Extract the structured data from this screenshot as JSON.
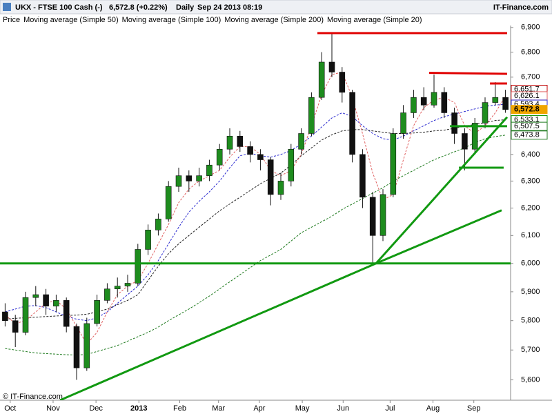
{
  "chart_data": {
    "type": "candlestick",
    "title": "UKX - FTSE 100 Cash (-)",
    "subtitle": "6,572.8 (+0.22%)",
    "period": "Daily",
    "timestamp": "Sep 24 2013 08:19",
    "source": "IT-Finance.com",
    "copyright": "© IT-Finance.com",
    "log_scale": true,
    "grid": false,
    "xlim": [
      0,
      250
    ],
    "xticks": [
      {
        "value": 5,
        "label": "Oct"
      },
      {
        "value": 26,
        "label": "Nov"
      },
      {
        "value": 47,
        "label": "Dec"
      },
      {
        "value": 68,
        "label": "2013"
      },
      {
        "value": 88,
        "label": "Feb"
      },
      {
        "value": 107,
        "label": "Mar"
      },
      {
        "value": 127,
        "label": "Apr"
      },
      {
        "value": 148,
        "label": "May"
      },
      {
        "value": 168,
        "label": "Jun"
      },
      {
        "value": 191,
        "label": "Jul"
      },
      {
        "value": 212,
        "label": "Aug"
      },
      {
        "value": 232,
        "label": "Sep"
      }
    ],
    "ylim": [
      5533,
      6908
    ],
    "yticks": [
      {
        "value": 5600,
        "label": "5,600"
      },
      {
        "value": 5700,
        "label": "5,700"
      },
      {
        "value": 5800,
        "label": "5,800"
      },
      {
        "value": 5900,
        "label": "5,900"
      },
      {
        "value": 6000,
        "label": "6,000"
      },
      {
        "value": 6100,
        "label": "6,100"
      },
      {
        "value": 6200,
        "label": "6,200"
      },
      {
        "value": 6300,
        "label": "6,300"
      },
      {
        "value": 6400,
        "label": "6,400"
      },
      {
        "value": 6500,
        "label": "6,500"
      },
      {
        "value": 6600,
        "label": "6,600"
      },
      {
        "value": 6700,
        "label": "6,700"
      },
      {
        "value": 6800,
        "label": "6,800"
      },
      {
        "value": 6900,
        "label": "6,900"
      }
    ],
    "x": [
      2.5,
      7.5,
      12.5,
      17.5,
      22.5,
      27.5,
      32.5,
      37.5,
      42.5,
      47.5,
      52.5,
      57.5,
      62.5,
      67.5,
      72.5,
      77.5,
      82.5,
      87.5,
      92.5,
      97.5,
      102.5,
      107.5,
      112.5,
      117.5,
      122.5,
      127.5,
      132.5,
      137.5,
      142.5,
      147.5,
      152.5,
      157.5,
      162.5,
      167.5,
      172.5,
      177.5,
      182.5,
      187.5,
      192.5,
      197.5,
      202.5,
      207.5,
      212.5,
      217.5,
      222.5,
      227.5,
      232.5,
      237.5,
      242.5,
      247.5
    ],
    "price": {
      "name": "Price",
      "up_color": "#1e8c1e",
      "down_color": "#111111",
      "open": [
        5830,
        5800,
        5760,
        5880,
        5890,
        5850,
        5870,
        5780,
        5640,
        5790,
        5870,
        5910,
        5920,
        5930,
        6050,
        6120,
        6160,
        6280,
        6320,
        6300,
        6320,
        6360,
        6420,
        6470,
        6430,
        6400,
        6380,
        6250,
        6300,
        6420,
        6480,
        6620,
        6760,
        6720,
        6640,
        6400,
        6240,
        6100,
        6250,
        6480,
        6560,
        6620,
        6590,
        6640,
        6560,
        6480,
        6420,
        6520,
        6600,
        6620
      ],
      "high": [
        5860,
        5820,
        5900,
        5920,
        5910,
        5890,
        5880,
        5790,
        5810,
        5890,
        5930,
        5950,
        5960,
        6070,
        6140,
        6180,
        6300,
        6350,
        6340,
        6350,
        6380,
        6440,
        6500,
        6490,
        6450,
        6420,
        6390,
        6330,
        6440,
        6500,
        6640,
        6800,
        6875,
        6740,
        6650,
        6420,
        6260,
        6270,
        6500,
        6590,
        6650,
        6660,
        6710,
        6660,
        6580,
        6500,
        6540,
        6620,
        6680,
        6650
      ],
      "low": [
        5780,
        5710,
        5750,
        5850,
        5820,
        5830,
        5760,
        5600,
        5630,
        5780,
        5860,
        5880,
        5900,
        5920,
        6030,
        6100,
        6150,
        6260,
        6260,
        6280,
        6300,
        6340,
        6400,
        6410,
        6370,
        6340,
        6210,
        6230,
        6280,
        6400,
        6470,
        6610,
        6700,
        6600,
        6370,
        6200,
        6000,
        6080,
        6240,
        6460,
        6540,
        6570,
        6580,
        6540,
        6440,
        6340,
        6400,
        6500,
        6590,
        6560
      ],
      "close": [
        5800,
        5760,
        5880,
        5890,
        5850,
        5870,
        5780,
        5640,
        5790,
        5870,
        5910,
        5920,
        5930,
        6050,
        6120,
        6160,
        6280,
        6320,
        6300,
        6320,
        6360,
        6420,
        6470,
        6430,
        6400,
        6380,
        6250,
        6300,
        6420,
        6480,
        6620,
        6760,
        6720,
        6640,
        6400,
        6240,
        6100,
        6250,
        6480,
        6560,
        6620,
        6590,
        6640,
        6560,
        6480,
        6420,
        6520,
        6600,
        6620,
        6572.8
      ]
    },
    "series": [
      {
        "name": "Moving average (Simple 50)",
        "color": "#2b2bd0",
        "values": [
          5830,
          5840,
          5850,
          5852,
          5845,
          5830,
          5815,
          5805,
          5800,
          5810,
          5830,
          5860,
          5890,
          5920,
          5960,
          6010,
          6070,
          6130,
          6185,
          6225,
          6260,
          6300,
          6350,
          6395,
          6405,
          6395,
          6390,
          6400,
          6415,
          6440,
          6470,
          6505,
          6540,
          6560,
          6545,
          6510,
          6480,
          6460,
          6455,
          6470,
          6490,
          6510,
          6530,
          6545,
          6555,
          6565,
          6575,
          6585,
          6590,
          6593.4
        ]
      },
      {
        "name": "Moving average (Simple 100)",
        "color": "#222222",
        "values": [
          5805,
          5808,
          5810,
          5812,
          5814,
          5816,
          5818,
          5819,
          5822,
          5830,
          5840,
          5855,
          5870,
          5890,
          5940,
          5990,
          6035,
          6070,
          6100,
          6130,
          6160,
          6190,
          6215,
          6240,
          6265,
          6290,
          6310,
          6330,
          6360,
          6395,
          6425,
          6455,
          6475,
          6490,
          6495,
          6495,
          6490,
          6485,
          6480,
          6480,
          6482,
          6485,
          6490,
          6493,
          6500,
          6508,
          6515,
          6522,
          6530,
          6533.1
        ]
      },
      {
        "name": "Moving average (Simple 200)",
        "color": "#1e7a1e",
        "values": [
          5705,
          5700,
          5695,
          5690,
          5688,
          5686,
          5684,
          5683,
          5685,
          5695,
          5705,
          5715,
          5730,
          5745,
          5760,
          5778,
          5800,
          5820,
          5840,
          5862,
          5885,
          5910,
          5935,
          5960,
          5985,
          6010,
          6030,
          6050,
          6080,
          6110,
          6130,
          6150,
          6170,
          6195,
          6215,
          6235,
          6255,
          6275,
          6300,
          6320,
          6340,
          6360,
          6380,
          6395,
          6410,
          6425,
          6445,
          6460,
          6468,
          6473.8
        ]
      },
      {
        "name": "Moving average (Simple 20)",
        "color": "#e06060",
        "values": [
          5820,
          5790,
          5800,
          5830,
          5860,
          5870,
          5840,
          5780,
          5720,
          5760,
          5830,
          5890,
          5920,
          5940,
          6000,
          6070,
          6140,
          6220,
          6270,
          6300,
          6320,
          6340,
          6390,
          6430,
          6430,
          6400,
          6340,
          6320,
          6340,
          6400,
          6510,
          6630,
          6710,
          6720,
          6620,
          6480,
          6330,
          6230,
          6250,
          6380,
          6510,
          6580,
          6610,
          6620,
          6600,
          6510,
          6480,
          6510,
          6560,
          6626.1
        ]
      }
    ],
    "lines": [
      {
        "color": "#e00000",
        "x": [
          155.4,
          248.3
        ],
        "y": [
          6877,
          6877
        ]
      },
      {
        "color": "#e00000",
        "x": [
          210.1,
          248.3
        ],
        "y": [
          6717,
          6713
        ]
      },
      {
        "color": "#e00000",
        "x": [
          239.9,
          248.3
        ],
        "y": [
          6675,
          6675
        ]
      },
      {
        "color": "#119911",
        "x": [
          0,
          250
        ],
        "y": [
          6000,
          6000
        ]
      },
      {
        "color": "#119911",
        "x": [
          220.3,
          248.3
        ],
        "y": [
          6508,
          6508
        ]
      },
      {
        "color": "#119911",
        "x": [
          224.7,
          246.6
        ],
        "y": [
          6350,
          6350
        ]
      },
      {
        "color": "#119911",
        "x": [
          29.4,
          184.1
        ],
        "y": [
          5533,
          6000
        ]
      },
      {
        "color": "#119911",
        "x": [
          184.1,
          248.3
        ],
        "y": [
          6000,
          6543
        ]
      },
      {
        "color": "#119911",
        "x": [
          184.1,
          245.6
        ],
        "y": [
          6000,
          6192
        ]
      }
    ],
    "levels": [
      {
        "value": 6651.7,
        "label": "6,651.7",
        "color": "#c00000"
      },
      {
        "value": 6626.1,
        "label": "6,626.1",
        "color": "#e06060"
      },
      {
        "value": 6593.4,
        "label": "6,593.4",
        "color": "#2b2bd0"
      },
      {
        "value": 6572.8,
        "label": "6,572.8",
        "color": "#f0a500"
      },
      {
        "value": 6533.1,
        "label": "6,533.1",
        "color": "#119911"
      },
      {
        "value": 6507.5,
        "label": "6,507.5",
        "color": "#1e7a1e"
      },
      {
        "value": 6473.8,
        "label": "6,473.8",
        "color": "#1e7a1e"
      }
    ]
  }
}
